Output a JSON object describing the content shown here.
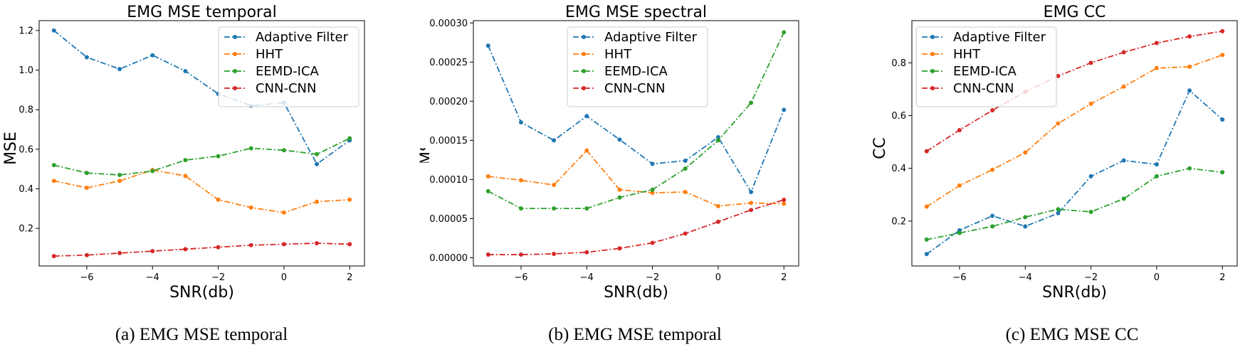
{
  "chart_data": [
    {
      "type": "line",
      "title": "EMG MSE temporal",
      "xlabel": "SNR(db)",
      "ylabel": "MSE",
      "caption": "(a) EMG MSE temporal",
      "x": [
        -7,
        -6,
        -5,
        -4,
        -3,
        -2,
        -1,
        0,
        1,
        2
      ],
      "xlim": [
        -7.45,
        2.45
      ],
      "ylim": [
        0.01,
        1.25
      ],
      "xticks": [
        -6,
        -4,
        -2,
        0,
        2
      ],
      "xtick_labels": [
        "−6",
        "−4",
        "−2",
        "0",
        "2"
      ],
      "yticks": [
        0.2,
        0.4,
        0.6,
        0.8,
        1.0,
        1.2
      ],
      "ytick_labels": [
        "0.2",
        "0.4",
        "0.6",
        "0.8",
        "1.0",
        "1.2"
      ],
      "legend": "top-right",
      "grid": false,
      "series": [
        {
          "name": "Adaptive Filter",
          "color": "#1f77b4",
          "values": [
            1.2,
            1.065,
            1.005,
            1.075,
            0.995,
            0.88,
            0.82,
            0.835,
            0.525,
            0.645
          ]
        },
        {
          "name": "HHT",
          "color": "#ff7f0e",
          "values": [
            0.44,
            0.405,
            0.44,
            0.495,
            0.465,
            0.345,
            0.305,
            0.28,
            0.335,
            0.345
          ]
        },
        {
          "name": "EEMD-ICA",
          "color": "#2ca02c",
          "values": [
            0.52,
            0.48,
            0.47,
            0.49,
            0.545,
            0.565,
            0.605,
            0.595,
            0.575,
            0.655
          ]
        },
        {
          "name": "CNN-CNN",
          "color": "#d62728",
          "values": [
            0.06,
            0.065,
            0.075,
            0.085,
            0.095,
            0.105,
            0.115,
            0.12,
            0.125,
            0.12
          ]
        }
      ]
    },
    {
      "type": "line",
      "title": "EMG MSE spectral",
      "xlabel": "SNR(db)",
      "ylabel": "MSE",
      "caption": "(b) EMG MSE temporal",
      "x": [
        -7,
        -6,
        -5,
        -4,
        -3,
        -2,
        -1,
        0,
        1,
        2
      ],
      "xlim": [
        -7.45,
        2.45
      ],
      "ylim": [
        -1.05e-05,
        0.000303
      ],
      "xticks": [
        -6,
        -4,
        -2,
        0,
        2
      ],
      "xtick_labels": [
        "−6",
        "−4",
        "−2",
        "0",
        "2"
      ],
      "yticks": [
        0,
        5e-05,
        0.0001,
        0.00015,
        0.0002,
        0.00025,
        0.0003
      ],
      "ytick_labels": [
        "0.00000",
        "0.00005",
        "0.00010",
        "0.00015",
        "0.00020",
        "0.00025",
        "0.00030"
      ],
      "legend": "top-center",
      "grid": false,
      "series": [
        {
          "name": "Adaptive Filter",
          "color": "#1f77b4",
          "values": [
            0.000271,
            0.000173,
            0.00015,
            0.000181,
            0.000151,
            0.00012,
            0.000124,
            0.000154,
            8.4e-05,
            0.000189
          ]
        },
        {
          "name": "HHT",
          "color": "#ff7f0e",
          "values": [
            0.000104,
            9.9e-05,
            9.3e-05,
            0.000137,
            8.7e-05,
            8.3e-05,
            8.4e-05,
            6.6e-05,
            7e-05,
            6.9e-05
          ]
        },
        {
          "name": "EEMD-ICA",
          "color": "#2ca02c",
          "values": [
            8.5e-05,
            6.3e-05,
            6.3e-05,
            6.3e-05,
            7.7e-05,
            8.7e-05,
            0.000114,
            0.00015,
            0.000198,
            0.000288
          ]
        },
        {
          "name": "CNN-CNN",
          "color": "#d62728",
          "values": [
            4e-06,
            4e-06,
            5e-06,
            7e-06,
            1.2e-05,
            1.9e-05,
            3.1e-05,
            4.6e-05,
            6.1e-05,
            7.4e-05
          ]
        }
      ]
    },
    {
      "type": "line",
      "title": "EMG CC",
      "xlabel": "SNR(db)",
      "ylabel": "CC",
      "caption": "(c) EMG MSE CC",
      "x": [
        -7,
        -6,
        -5,
        -4,
        -3,
        -2,
        -1,
        0,
        1,
        2
      ],
      "xlim": [
        -7.45,
        2.45
      ],
      "ylim": [
        0.03,
        0.96
      ],
      "xticks": [
        -6,
        -4,
        -2,
        0,
        2
      ],
      "xtick_labels": [
        "−6",
        "−4",
        "−2",
        "0",
        "2"
      ],
      "yticks": [
        0.2,
        0.4,
        0.6,
        0.8
      ],
      "ytick_labels": [
        "0.2",
        "0.4",
        "0.6",
        "0.8"
      ],
      "legend": "top-left",
      "grid": false,
      "series": [
        {
          "name": "Adaptive Filter",
          "color": "#1f77b4",
          "values": [
            0.075,
            0.165,
            0.22,
            0.18,
            0.23,
            0.37,
            0.43,
            0.415,
            0.695,
            0.585
          ]
        },
        {
          "name": "HHT",
          "color": "#ff7f0e",
          "values": [
            0.255,
            0.335,
            0.395,
            0.46,
            0.57,
            0.645,
            0.71,
            0.78,
            0.785,
            0.83
          ]
        },
        {
          "name": "EEMD-ICA",
          "color": "#2ca02c",
          "values": [
            0.13,
            0.155,
            0.18,
            0.215,
            0.245,
            0.235,
            0.285,
            0.37,
            0.4,
            0.385
          ]
        },
        {
          "name": "CNN-CNN",
          "color": "#d62728",
          "values": [
            0.465,
            0.545,
            0.62,
            0.69,
            0.75,
            0.8,
            0.84,
            0.875,
            0.9,
            0.92
          ]
        }
      ]
    }
  ]
}
